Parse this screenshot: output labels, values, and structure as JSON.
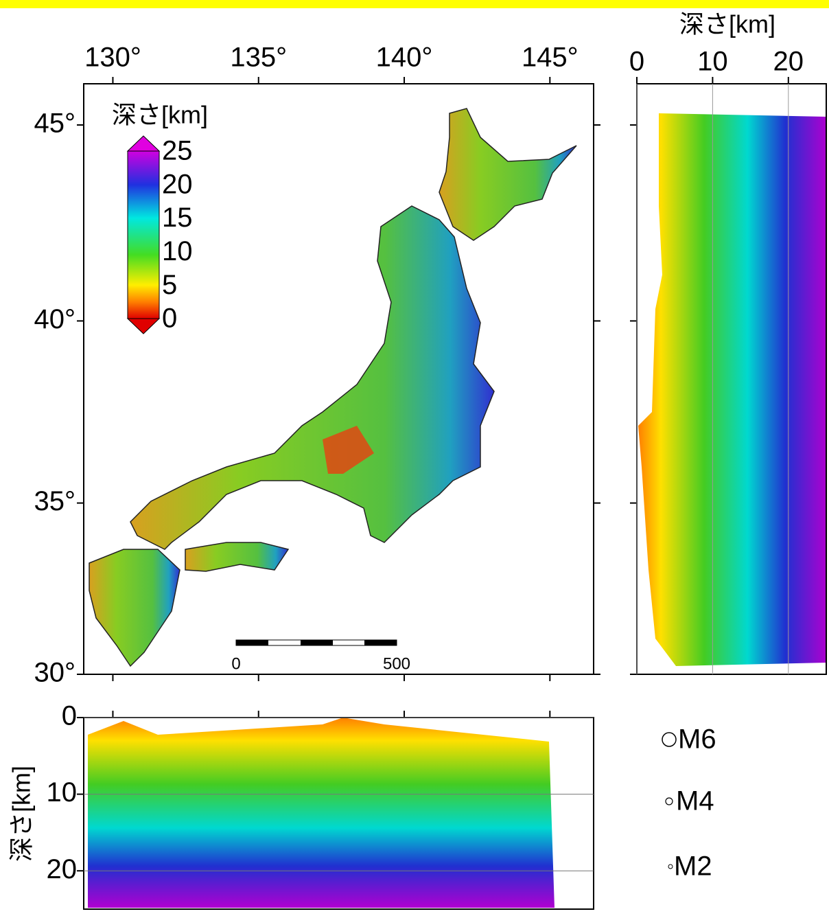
{
  "map": {
    "lon_range": [
      129,
      146.5
    ],
    "lat_range": [
      30,
      46
    ],
    "lon_ticks": [
      {
        "value": 130,
        "label": "130°"
      },
      {
        "value": 135,
        "label": "135°"
      },
      {
        "value": 140,
        "label": "140°"
      },
      {
        "value": 145,
        "label": "145°"
      }
    ],
    "lat_ticks": [
      {
        "value": 30,
        "label": "30°"
      },
      {
        "value": 35,
        "label": "35°"
      },
      {
        "value": 40,
        "label": "40°"
      },
      {
        "value": 45,
        "label": "45°"
      }
    ]
  },
  "colorbar": {
    "title": "深さ[km]",
    "range": [
      0,
      25
    ],
    "ticks": [
      0,
      5,
      10,
      15,
      20,
      25
    ]
  },
  "depth_section_right": {
    "title": "深さ[km]",
    "range": [
      0,
      25
    ],
    "ticks": [
      0,
      10,
      20
    ]
  },
  "depth_section_bottom": {
    "title": "深さ[km]",
    "range": [
      0,
      25
    ],
    "ticks": [
      0,
      10,
      20
    ]
  },
  "scale_bar": {
    "labels": [
      "0",
      "500"
    ]
  },
  "legend": [
    "M6",
    "M4",
    "M2"
  ]
}
